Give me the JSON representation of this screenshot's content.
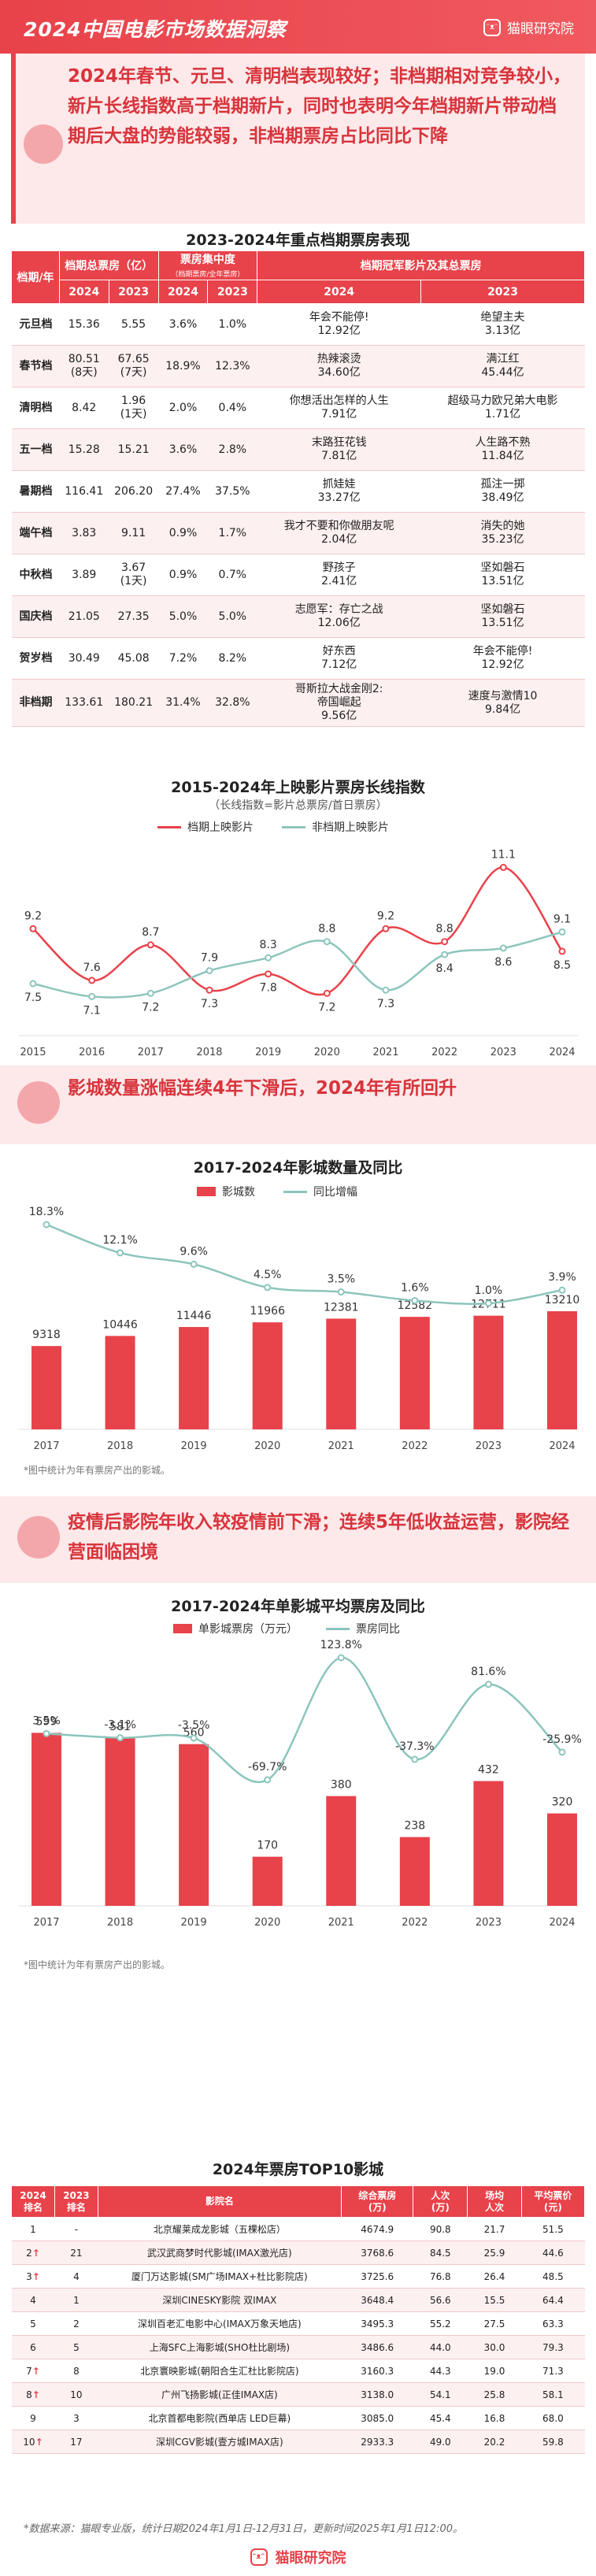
{
  "header": {
    "title": "2024中国电影市场数据洞察",
    "logo_text": "猫眼研究院"
  },
  "summary1": "2024年春节、元旦、清明档表现较好；非档期相对竞争较小，新片长线指数高于档期新片，同时也表明今年档期新片带动档期后大盘的势能较弱，非档期票房占比同比下降",
  "table1": {
    "title": "2023-2024年重点档期票房表现",
    "h_season": "档期/年",
    "h_box": "档期总票房（亿）",
    "h_share": "票房集中度",
    "h_share_sub": "（档期票房/全年票房）",
    "h_champ": "档期冠军影片及其总票房",
    "y2024": "2024",
    "y2023": "2023",
    "rows": [
      {
        "name": "元旦档",
        "b24": "15.36",
        "b23": "5.55",
        "s24": "3.6%",
        "s23": "1.0%",
        "c24": "年会不能停!\n12.92亿",
        "c23": "绝望主夫\n3.13亿"
      },
      {
        "name": "春节档",
        "b24": "80.51\n(8天)",
        "b23": "67.65\n(7天)",
        "s24": "18.9%",
        "s23": "12.3%",
        "c24": "热辣滚烫\n34.60亿",
        "c23": "满江红\n45.44亿"
      },
      {
        "name": "清明档",
        "b24": "8.42",
        "b23": "1.96\n(1天)",
        "s24": "2.0%",
        "s23": "0.4%",
        "c24": "你想活出怎样的人生\n7.91亿",
        "c23": "超级马力欧兄弟大电影\n1.71亿"
      },
      {
        "name": "五一档",
        "b24": "15.28",
        "b23": "15.21",
        "s24": "3.6%",
        "s23": "2.8%",
        "c24": "末路狂花钱\n7.81亿",
        "c23": "人生路不熟\n11.84亿"
      },
      {
        "name": "暑期档",
        "b24": "116.41",
        "b23": "206.20",
        "s24": "27.4%",
        "s23": "37.5%",
        "c24": "抓娃娃\n33.27亿",
        "c23": "孤注一掷\n38.49亿"
      },
      {
        "name": "端午档",
        "b24": "3.83",
        "b23": "9.11",
        "s24": "0.9%",
        "s23": "1.7%",
        "c24": "我才不要和你做朋友呢\n2.04亿",
        "c23": "消失的她\n35.23亿"
      },
      {
        "name": "中秋档",
        "b24": "3.89",
        "b23": "3.67\n(1天)",
        "s24": "0.9%",
        "s23": "0.7%",
        "c24": "野孩子\n2.41亿",
        "c23": "坚如磐石\n13.51亿"
      },
      {
        "name": "国庆档",
        "b24": "21.05",
        "b23": "27.35",
        "s24": "5.0%",
        "s23": "5.0%",
        "c24": "志愿军：存亡之战\n12.06亿",
        "c23": "坚如磐石\n13.51亿"
      },
      {
        "name": "贺岁档",
        "b24": "30.49",
        "b23": "45.08",
        "s24": "7.2%",
        "s23": "8.2%",
        "c24": "好东西\n7.12亿",
        "c23": "年会不能停!\n12.92亿"
      },
      {
        "name": "非档期",
        "b24": "133.61",
        "b23": "180.21",
        "s24": "31.4%",
        "s23": "32.8%",
        "c24": "哥斯拉大战金刚2:\n帝国崛起\n9.56亿",
        "c23": "速度与激情10\n9.84亿"
      }
    ]
  },
  "chart1_title": "2015-2024年上映影片票房长线指数",
  "chart1_sub": "（长线指数=影片总票房/首日票房）",
  "section2": "影城数量涨幅连续4年下滑后，2024年有所回升",
  "chart2_title": "2017-2024年影城数量及同比",
  "chart2_note": "*图中统计为年有票房产出的影城。",
  "section3": "疫情后影院年收入较疫情前下滑；连续5年低收益运营，影院经营面临困境",
  "chart3_title": "2017-2024年单影城平均票房及同比",
  "chart3_note": "*图中统计为年有票房产出的影城。",
  "table2": {
    "title": "2024年票房TOP10影城",
    "headers": [
      "2024\n排名",
      "2023\n排名",
      "影院名",
      "综合票房\n(万)",
      "人次\n(万)",
      "场均\n人次",
      "平均票价\n(元)"
    ],
    "rows": [
      [
        "1",
        "-",
        "北京耀莱成龙影城（五棵松店）",
        "4674.9",
        "90.8",
        "21.7",
        "51.5"
      ],
      [
        "2↑",
        "21",
        "武汉武商梦时代影城(IMAX激光店)",
        "3768.6",
        "84.5",
        "25.9",
        "44.6"
      ],
      [
        "3↑",
        "4",
        "厦门万达影城(SM广场IMAX+杜比影院店)",
        "3725.6",
        "76.8",
        "26.4",
        "48.5"
      ],
      [
        "4",
        "1",
        "深圳CINESKY影院 双IMAX",
        "3648.4",
        "56.6",
        "15.5",
        "64.4"
      ],
      [
        "5",
        "2",
        "深圳百老汇电影中心(IMAX万象天地店)",
        "3495.3",
        "55.2",
        "27.5",
        "63.3"
      ],
      [
        "6",
        "5",
        "上海SFC上海影城(SHO杜比剧场)",
        "3486.6",
        "44.0",
        "30.0",
        "79.3"
      ],
      [
        "7↑",
        "8",
        "北京寰映影城(朝阳合生汇杜比影院店)",
        "3160.3",
        "44.3",
        "19.0",
        "71.3"
      ],
      [
        "8↑",
        "10",
        "广州飞扬影城(正佳IMAX店)",
        "3138.0",
        "54.1",
        "25.8",
        "58.1"
      ],
      [
        "9",
        "3",
        "北京首都电影院(西单店 LED巨幕)",
        "3085.0",
        "45.4",
        "16.8",
        "68.0"
      ],
      [
        "10↑",
        "17",
        "深圳CGV影城(壹方城IMAX店)",
        "2933.3",
        "49.0",
        "20.2",
        "59.8"
      ]
    ]
  },
  "footnote": "*数据来源：猫眼专业版，统计日期2024年1月1日-12月31日，更新时间2025年1月1日12:00。",
  "chart_data": [
    {
      "type": "line",
      "title": "2015-2024年上映影片票房长线指数",
      "subtitle": "（长线指数=影片总票房/首日票房）",
      "x": [
        "2015",
        "2016",
        "2017",
        "2018",
        "2019",
        "2020",
        "2021",
        "2022",
        "2023",
        "2024"
      ],
      "series": [
        {
          "name": "档期上映影片",
          "color": "#e8424a",
          "values": [
            9.2,
            7.6,
            8.7,
            7.3,
            7.8,
            7.2,
            9.2,
            8.8,
            11.1,
            8.5
          ]
        },
        {
          "name": "非档期上映影片",
          "color": "#8cc5bd",
          "values": [
            7.5,
            7.1,
            7.2,
            7.9,
            8.3,
            8.8,
            7.3,
            8.4,
            8.6,
            9.1
          ]
        }
      ],
      "ylim": [
        6.5,
        11.5
      ]
    },
    {
      "type": "bar",
      "title": "2017-2024年影城数量及同比",
      "categories": [
        "2017",
        "2018",
        "2019",
        "2020",
        "2021",
        "2022",
        "2023",
        "2024"
      ],
      "series": [
        {
          "name": "影城数",
          "color": "#e8424a",
          "values": [
            9318,
            10446,
            11446,
            11966,
            12381,
            12582,
            12711,
            13210
          ]
        },
        {
          "name": "同比增幅",
          "color": "#8cc5bd",
          "values": [
            18.3,
            12.1,
            9.6,
            4.5,
            3.5,
            1.6,
            1.0,
            3.9
          ],
          "unit": "%"
        }
      ]
    },
    {
      "type": "bar",
      "title": "2017-2024年单影城平均票房及同比",
      "categories": [
        "2017",
        "2018",
        "2019",
        "2020",
        "2021",
        "2022",
        "2023",
        "2024"
      ],
      "series": [
        {
          "name": "单影城票房（万元）",
          "color": "#e8424a",
          "values": [
            599,
            581,
            560,
            170,
            380,
            238,
            432,
            320
          ]
        },
        {
          "name": "票房同比",
          "color": "#8cc5bd",
          "values": [
            3.5,
            -3.1,
            -3.5,
            -69.7,
            123.8,
            -37.3,
            81.6,
            -25.9
          ],
          "unit": "%"
        }
      ]
    }
  ]
}
